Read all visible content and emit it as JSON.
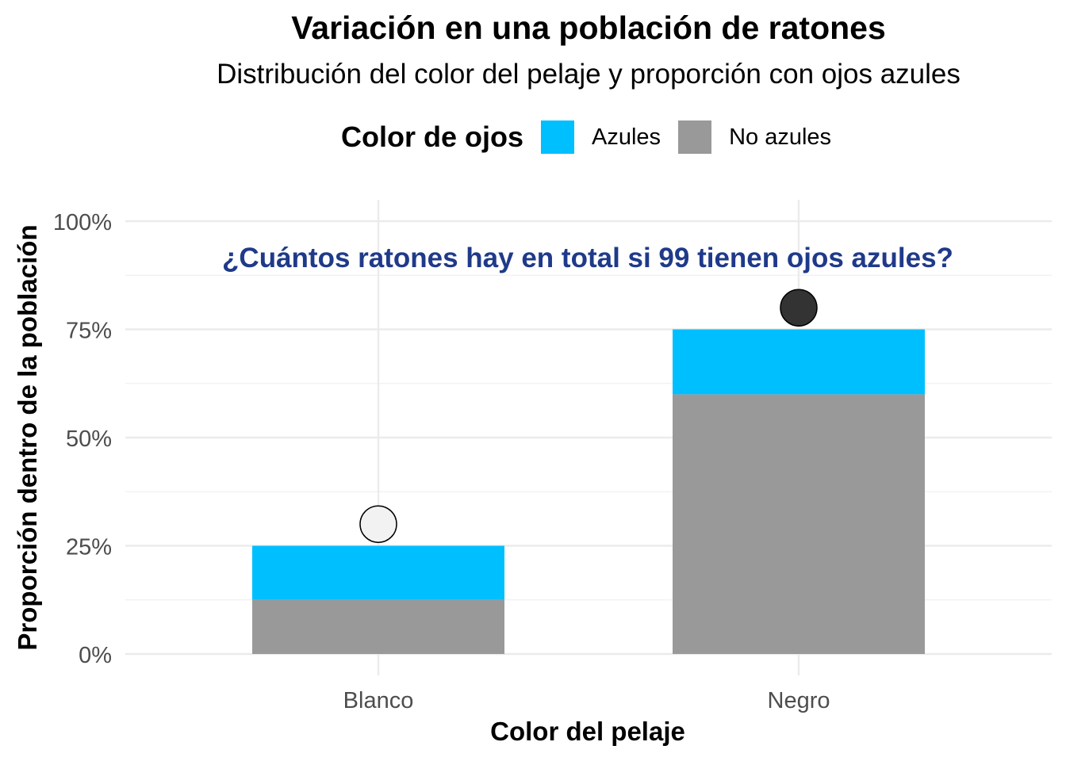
{
  "chart_data": {
    "type": "bar",
    "stacked": true,
    "title": "Variación en una población de ratones",
    "subtitle": "Distribución del color del pelaje y proporción con ojos azules",
    "xlabel": "Color del pelaje",
    "ylabel": "Proporción dentro de la población",
    "categories": [
      "Blanco",
      "Negro"
    ],
    "series": [
      {
        "name": "No azules",
        "color": "#999999",
        "values": [
          12.5,
          60
        ]
      },
      {
        "name": "Azules",
        "color": "#00BFFF",
        "values": [
          12.5,
          15
        ]
      }
    ],
    "markers": [
      {
        "category": "Blanco",
        "value": 30,
        "color": "#F2F2F2"
      },
      {
        "category": "Negro",
        "value": 80,
        "color": "#333333"
      }
    ],
    "ylim": [
      0,
      100
    ],
    "yticks": [
      0,
      25,
      50,
      75,
      100
    ],
    "ytick_labels": [
      "0%",
      "25%",
      "50%",
      "75%",
      "100%"
    ],
    "annotation": "¿Cuántos ratones hay en total si 99 tienen ojos azules?",
    "annotation_color": "#1F3A8A",
    "legend": {
      "title": "Color de ojos",
      "position": "top"
    },
    "grid": true
  }
}
